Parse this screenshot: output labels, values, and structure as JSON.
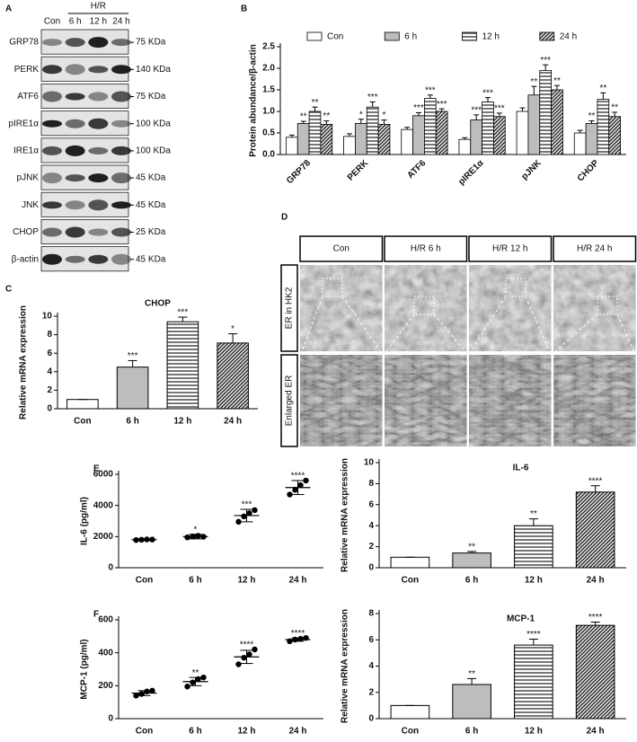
{
  "blot": {
    "label": "A",
    "group": "H/R",
    "lanes": [
      "Con",
      "6 h",
      "12 h",
      "24 h"
    ],
    "rows": [
      {
        "name": "GRP78",
        "size": "75 KDa"
      },
      {
        "name": "PERK",
        "size": "140 KDa"
      },
      {
        "name": "ATF6",
        "size": "75 KDa"
      },
      {
        "name": "pIRE1α",
        "size": "100 KDa"
      },
      {
        "name": "IRE1α",
        "size": "100 KDa"
      },
      {
        "name": "pJNK",
        "size": "45 KDa"
      },
      {
        "name": "JNK",
        "size": "45 KDa"
      },
      {
        "name": "CHOP",
        "size": "25 KDa"
      },
      {
        "name": "β-actin",
        "size": "45 KDa"
      }
    ]
  },
  "em": {
    "label": "D",
    "columns": [
      "Con",
      "H/R 6 h",
      "H/R 12 h",
      "H/R 24 h"
    ],
    "rows": [
      "ER in HK2",
      "Enlarged ER"
    ]
  },
  "chart_data": [
    {
      "type": "bar",
      "label": "B",
      "ylabel": "Protein abundance/β-actin",
      "legend": "top",
      "xtick_rotation": 45,
      "categories": [
        "GRP78",
        "PERK",
        "ATF6",
        "pIRE1α",
        "pJNK",
        "CHOP"
      ],
      "series": [
        {
          "name": "Con",
          "color": "#ffffff",
          "values": [
            0.4,
            0.42,
            0.58,
            0.35,
            1.0,
            0.5
          ],
          "errors": [
            0.05,
            0.06,
            0.05,
            0.04,
            0.08,
            0.06
          ],
          "stars": [
            null,
            null,
            null,
            null,
            null,
            null
          ]
        },
        {
          "name": "6 h",
          "color": "#bdbdbd",
          "values": [
            0.72,
            0.72,
            0.9,
            0.8,
            1.38,
            0.72
          ],
          "errors": [
            0.05,
            0.1,
            0.07,
            0.12,
            0.2,
            0.06
          ],
          "stars": [
            "**",
            "*",
            "***",
            "***",
            "**",
            "**"
          ]
        },
        {
          "name": "12 h",
          "color": "#555555",
          "pattern": "horizontal",
          "values": [
            1.0,
            1.1,
            1.3,
            1.22,
            1.95,
            1.28
          ],
          "errors": [
            0.1,
            0.12,
            0.08,
            0.1,
            0.13,
            0.15
          ],
          "stars": [
            "**",
            "***",
            "***",
            "***",
            "***",
            "**"
          ]
        },
        {
          "name": "24 h",
          "color": "#333333",
          "pattern": "diagonal",
          "values": [
            0.7,
            0.7,
            1.0,
            0.88,
            1.5,
            0.88
          ],
          "errors": [
            0.08,
            0.1,
            0.06,
            0.08,
            0.1,
            0.1
          ],
          "stars": [
            "**",
            "*",
            "***",
            "***",
            "**",
            "**"
          ]
        }
      ],
      "ylim": [
        0,
        2.5
      ],
      "yticks": [
        {
          "value": 0,
          "label": "0.0"
        },
        0.5,
        {
          "value": 1,
          "label": "1.0"
        },
        1.5,
        {
          "value": 2,
          "label": "2.0"
        },
        2.5
      ]
    },
    {
      "type": "bar",
      "label": "C",
      "title": "CHOP",
      "ylabel": "Relative mRNA expression",
      "categories": [
        "Con",
        "6 h",
        "12 h",
        "24 h"
      ],
      "values": [
        1,
        4.5,
        9.4,
        7.1
      ],
      "errors": [
        0,
        0.7,
        0.5,
        1.0
      ],
      "stars": [
        null,
        "***",
        "***",
        "*"
      ],
      "colors": [
        "#ffffff",
        "#bdbdbd",
        "#555555",
        "#333333"
      ],
      "patterns": [
        null,
        null,
        "horizontal",
        "diagonal"
      ],
      "ylim": [
        0,
        10
      ],
      "yticks": [
        0,
        2,
        4,
        6,
        8,
        10
      ]
    },
    {
      "type": "scatter",
      "label": "E",
      "ylabel": "IL-6 (pg/ml)",
      "categories": [
        "Con",
        "6 h",
        "12 h",
        "24 h"
      ],
      "points": [
        [
          1780,
          1800,
          1820,
          1810
        ],
        [
          1950,
          2000,
          2050,
          1990
        ],
        [
          2950,
          3300,
          3500,
          3700
        ],
        [
          4700,
          5000,
          5300,
          5600
        ]
      ],
      "means": [
        1800,
        2000,
        3350,
        5150
      ],
      "errors": [
        50,
        150,
        400,
        450
      ],
      "stars": [
        null,
        "*",
        "***",
        "****"
      ],
      "color": "#000000",
      "ylim": [
        0,
        6000
      ],
      "yticks": [
        0,
        2000,
        4000,
        6000
      ]
    },
    {
      "type": "bar",
      "title": "IL-6",
      "ylabel": "Relative mRNA expression",
      "categories": [
        "Con",
        "6 h",
        "12 h",
        "24 h"
      ],
      "values": [
        1,
        1.4,
        4.0,
        7.2
      ],
      "errors": [
        0,
        0.15,
        0.65,
        0.6
      ],
      "stars": [
        null,
        "**",
        "**",
        "****"
      ],
      "colors": [
        "#ffffff",
        "#bdbdbd",
        "#555555",
        "#333333"
      ],
      "patterns": [
        null,
        null,
        "horizontal",
        "diagonal"
      ],
      "ylim": [
        0,
        10
      ],
      "yticks": [
        0,
        2,
        4,
        6,
        8,
        10
      ]
    },
    {
      "type": "scatter",
      "label": "F",
      "ylabel": "MCP-1 (pg/ml)",
      "categories": [
        "Con",
        "6 h",
        "12 h",
        "24 h"
      ],
      "points": [
        [
          140,
          150,
          165,
          170
        ],
        [
          195,
          220,
          240,
          250
        ],
        [
          330,
          370,
          390,
          420
        ],
        [
          470,
          480,
          485,
          490
        ]
      ],
      "means": [
        155,
        225,
        375,
        480
      ],
      "errors": [
        15,
        25,
        40,
        10
      ],
      "stars": [
        null,
        "**",
        "****",
        "****"
      ],
      "color": "#000000",
      "ylim": [
        0,
        600
      ],
      "yticks": [
        0,
        200,
        400,
        600
      ]
    },
    {
      "type": "bar",
      "title": "MCP-1",
      "ylabel": "Relative mRNA expression",
      "categories": [
        "Con",
        "6 h",
        "12 h",
        "24 h"
      ],
      "values": [
        1,
        2.6,
        5.6,
        7.1
      ],
      "errors": [
        0,
        0.45,
        0.45,
        0.25
      ],
      "stars": [
        null,
        "**",
        "****",
        "****"
      ],
      "colors": [
        "#ffffff",
        "#bdbdbd",
        "#555555",
        "#333333"
      ],
      "patterns": [
        null,
        null,
        "horizontal",
        "diagonal"
      ],
      "ylim": [
        0,
        8
      ],
      "yticks": [
        0,
        2,
        4,
        6,
        8
      ]
    }
  ]
}
